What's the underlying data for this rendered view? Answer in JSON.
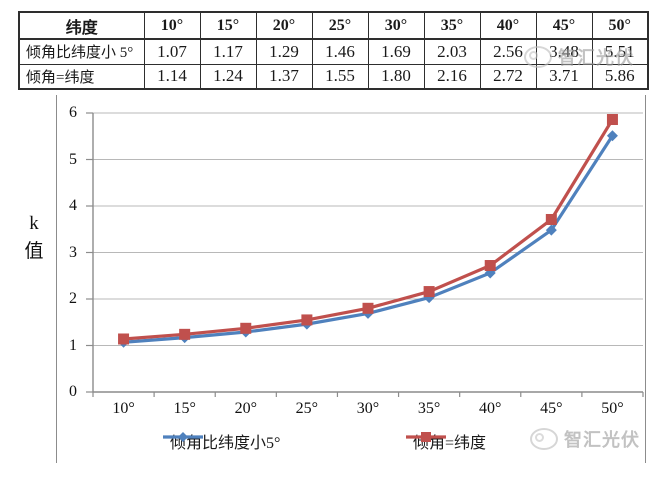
{
  "table": {
    "header": [
      "纬度",
      "10°",
      "15°",
      "20°",
      "25°",
      "30°",
      "35°",
      "40°",
      "45°",
      "50°"
    ],
    "rows": [
      {
        "label": "倾角比纬度小 5°",
        "values": [
          "1.07",
          "1.17",
          "1.29",
          "1.46",
          "1.69",
          "2.03",
          "2.56",
          "3.48",
          "5.51"
        ]
      },
      {
        "label": "倾角=纬度",
        "values": [
          "1.14",
          "1.24",
          "1.37",
          "1.55",
          "1.80",
          "2.16",
          "2.72",
          "3.71",
          "5.86"
        ]
      }
    ]
  },
  "chart_data": {
    "type": "line",
    "categories": [
      "10°",
      "15°",
      "20°",
      "25°",
      "30°",
      "35°",
      "40°",
      "45°",
      "50°"
    ],
    "series": [
      {
        "name": "倾角比纬度小5°",
        "marker": "diamond",
        "color": "#4f81bd",
        "values": [
          1.07,
          1.17,
          1.29,
          1.46,
          1.69,
          2.03,
          2.56,
          3.48,
          5.51
        ]
      },
      {
        "name": "倾角=纬度",
        "marker": "square",
        "color": "#c0504d",
        "values": [
          1.14,
          1.24,
          1.37,
          1.55,
          1.8,
          2.16,
          2.72,
          3.71,
          5.86
        ]
      }
    ],
    "title": "",
    "xlabel": "",
    "ylabel": "k 值",
    "ylim": [
      0,
      6
    ],
    "yticks": [
      0,
      1,
      2,
      3,
      4,
      5,
      6
    ],
    "grid": true,
    "legend_position": "bottom"
  },
  "watermark": {
    "text": "智汇光伏"
  },
  "colors": {
    "axis": "#8c8c8c",
    "grid": "#b8b8b8",
    "series_blue": "#4f81bd",
    "series_red": "#c0504d",
    "table_border": "#2e2e2e"
  }
}
